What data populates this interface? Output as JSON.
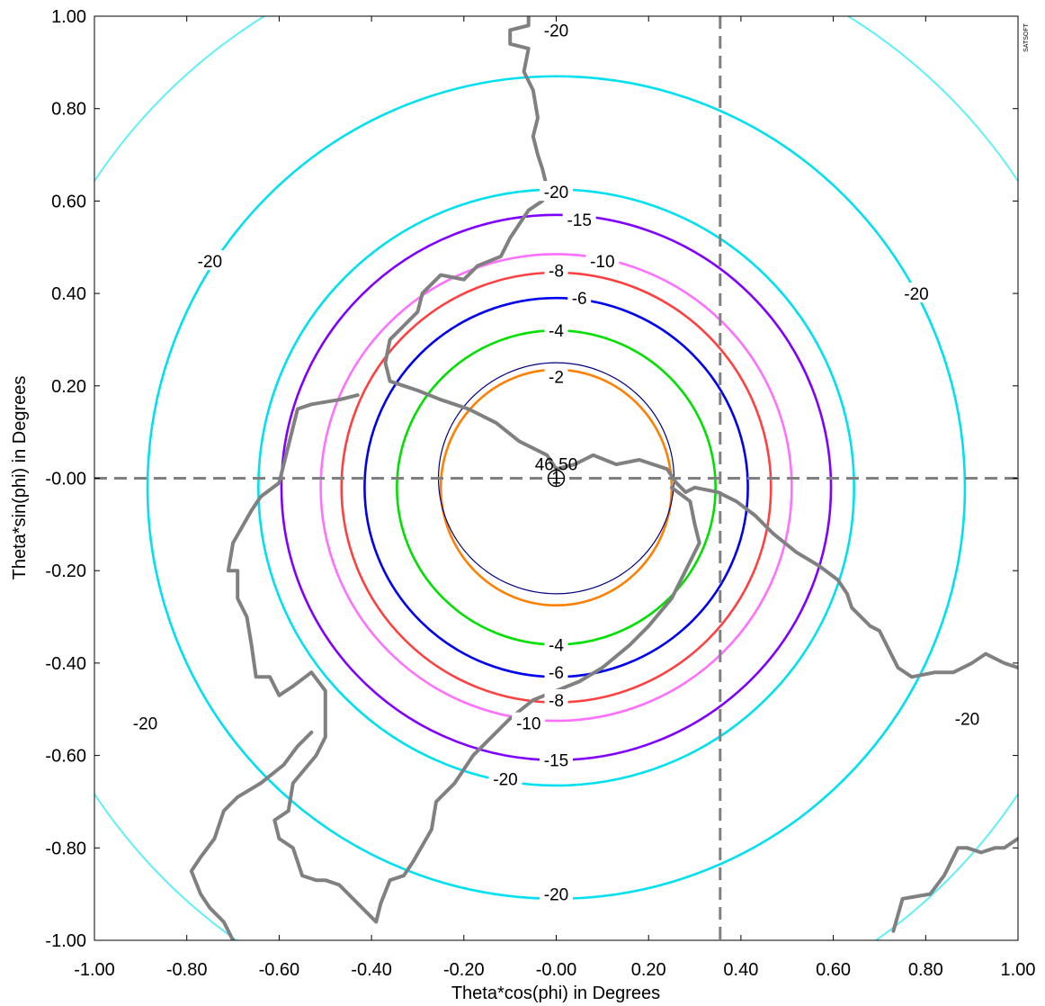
{
  "chart_data": {
    "type": "contour",
    "xlabel": "Theta*cos(phi) in Degrees",
    "ylabel": "Theta*sin(phi) in Degrees",
    "xlim": [
      -1.0,
      1.0
    ],
    "ylim": [
      -1.0,
      1.0
    ],
    "x_ticks": [
      "-1.00",
      "-0.80",
      "-0.60",
      "-0.40",
      "-0.20",
      "-0.00",
      "0.20",
      "0.40",
      "0.60",
      "0.80",
      "1.00"
    ],
    "y_ticks": [
      "1.00",
      "0.80",
      "0.60",
      "0.40",
      "0.20",
      "-0.00",
      "-0.20",
      "-0.40",
      "-0.60",
      "-0.80",
      "-1.00"
    ],
    "corner_tag": "SATSOFT",
    "peak_label": "46.50",
    "peak_marker": "1",
    "reference_lines": {
      "x": 0.355,
      "y": 0.0
    },
    "contours": [
      {
        "level": "-2",
        "color": "#ff8000",
        "cx": 0.0,
        "cy": -0.02,
        "rx": 0.25,
        "ry": 0.255
      },
      {
        "level": "",
        "color": "#000080",
        "cx": 0.0,
        "cy": 0.0,
        "rx": 0.255,
        "ry": 0.25
      },
      {
        "level": "-4",
        "color": "#00e000",
        "cx": 0.0,
        "cy": -0.02,
        "rx": 0.345,
        "ry": 0.34
      },
      {
        "level": "-6",
        "color": "#0000ee",
        "cx": 0.0,
        "cy": -0.02,
        "rx": 0.415,
        "ry": 0.41
      },
      {
        "level": "-8",
        "color": "#ff4040",
        "cx": 0.0,
        "cy": -0.02,
        "rx": 0.465,
        "ry": 0.465
      },
      {
        "level": "-10",
        "color": "#ff70ff",
        "cx": 0.0,
        "cy": -0.02,
        "rx": 0.51,
        "ry": 0.505
      },
      {
        "level": "-15",
        "color": "#8000ff",
        "cx": 0.0,
        "cy": -0.02,
        "rx": 0.595,
        "ry": 0.59
      },
      {
        "level": "-20",
        "color": "#00e0f0",
        "cx": 0.0,
        "cy": -0.02,
        "rx": 0.645,
        "ry": 0.645
      },
      {
        "level": "-20",
        "color": "#00e0f0",
        "cx": 0.0,
        "cy": -0.02,
        "rx": 0.885,
        "ry": 0.89
      },
      {
        "level": "-20",
        "color": "#60f0f8",
        "cx": 0.0,
        "cy": -0.02,
        "rx": 1.2,
        "ry": 1.2
      }
    ],
    "contour_labels": [
      {
        "text": "-20",
        "x": 0.0,
        "y": 0.97
      },
      {
        "text": "-20",
        "x": 0.0,
        "y": 0.62
      },
      {
        "text": "-15",
        "x": 0.05,
        "y": 0.56
      },
      {
        "text": "-10",
        "x": 0.1,
        "y": 0.47
      },
      {
        "text": "-8",
        "x": 0.0,
        "y": 0.45
      },
      {
        "text": "-6",
        "x": 0.05,
        "y": 0.39
      },
      {
        "text": "-4",
        "x": 0.0,
        "y": 0.32
      },
      {
        "text": "-2",
        "x": 0.0,
        "y": 0.22
      },
      {
        "text": "-4",
        "x": 0.0,
        "y": -0.36
      },
      {
        "text": "-6",
        "x": 0.0,
        "y": -0.42
      },
      {
        "text": "-8",
        "x": 0.0,
        "y": -0.48
      },
      {
        "text": "-10",
        "x": -0.06,
        "y": -0.53
      },
      {
        "text": "-15",
        "x": 0.0,
        "y": -0.61
      },
      {
        "text": "-20",
        "x": -0.11,
        "y": -0.65
      },
      {
        "text": "-20",
        "x": 0.0,
        "y": -0.9
      },
      {
        "text": "-20",
        "x": -0.75,
        "y": 0.47
      },
      {
        "text": "-20",
        "x": 0.78,
        "y": 0.4
      },
      {
        "text": "-20",
        "x": -0.89,
        "y": -0.53
      },
      {
        "text": "-20",
        "x": 0.89,
        "y": -0.52
      }
    ],
    "coastlines": [
      [
        [
          -0.06,
          1.0
        ],
        [
          -0.06,
          0.98
        ],
        [
          -0.1,
          0.97
        ],
        [
          -0.1,
          0.94
        ],
        [
          -0.06,
          0.93
        ],
        [
          -0.07,
          0.88
        ],
        [
          -0.05,
          0.84
        ],
        [
          -0.04,
          0.78
        ],
        [
          -0.05,
          0.74
        ],
        [
          -0.04,
          0.7
        ],
        [
          -0.03,
          0.67
        ],
        [
          -0.02,
          0.63
        ],
        [
          -0.03,
          0.6
        ],
        [
          -0.06,
          0.58
        ],
        [
          -0.08,
          0.55
        ],
        [
          -0.1,
          0.52
        ],
        [
          -0.12,
          0.48
        ],
        [
          -0.17,
          0.46
        ],
        [
          -0.2,
          0.43
        ],
        [
          -0.25,
          0.44
        ],
        [
          -0.29,
          0.4
        ],
        [
          -0.3,
          0.36
        ],
        [
          -0.33,
          0.33
        ],
        [
          -0.36,
          0.3
        ],
        [
          -0.37,
          0.25
        ],
        [
          -0.36,
          0.21
        ],
        [
          -0.33,
          0.2
        ],
        [
          -0.3,
          0.19
        ],
        [
          -0.25,
          0.17
        ],
        [
          -0.19,
          0.15
        ],
        [
          -0.13,
          0.12
        ],
        [
          -0.08,
          0.08
        ],
        [
          -0.04,
          0.06
        ],
        [
          -0.02,
          0.05
        ],
        [
          0.0,
          0.02
        ],
        [
          0.04,
          0.03
        ],
        [
          0.08,
          0.05
        ],
        [
          0.13,
          0.03
        ],
        [
          0.18,
          0.04
        ],
        [
          0.24,
          0.02
        ],
        [
          0.26,
          -0.01
        ],
        [
          0.28,
          -0.03
        ],
        [
          0.3,
          -0.02
        ],
        [
          0.35,
          -0.03
        ],
        [
          0.39,
          -0.05
        ],
        [
          0.43,
          -0.08
        ],
        [
          0.47,
          -0.12
        ],
        [
          0.52,
          -0.16
        ],
        [
          0.57,
          -0.19
        ],
        [
          0.61,
          -0.22
        ],
        [
          0.63,
          -0.25
        ],
        [
          0.64,
          -0.28
        ],
        [
          0.66,
          -0.3
        ],
        [
          0.68,
          -0.32
        ],
        [
          0.7,
          -0.33
        ],
        [
          0.72,
          -0.37
        ],
        [
          0.74,
          -0.41
        ],
        [
          0.77,
          -0.43
        ],
        [
          0.82,
          -0.42
        ],
        [
          0.86,
          -0.42
        ],
        [
          0.9,
          -0.4
        ],
        [
          0.93,
          -0.38
        ],
        [
          0.97,
          -0.4
        ],
        [
          1.0,
          -0.41
        ],
        [
          1.02,
          -0.39
        ]
      ],
      [
        [
          0.25,
          -0.02
        ],
        [
          0.29,
          -0.05
        ],
        [
          0.3,
          -0.1
        ],
        [
          0.31,
          -0.14
        ],
        [
          0.28,
          -0.2
        ],
        [
          0.25,
          -0.26
        ],
        [
          0.2,
          -0.32
        ],
        [
          0.16,
          -0.36
        ],
        [
          0.1,
          -0.41
        ],
        [
          0.05,
          -0.44
        ],
        [
          0.0,
          -0.46
        ],
        [
          -0.05,
          -0.48
        ],
        [
          -0.1,
          -0.52
        ],
        [
          -0.14,
          -0.56
        ],
        [
          -0.18,
          -0.6
        ],
        [
          -0.22,
          -0.66
        ],
        [
          -0.26,
          -0.7
        ],
        [
          -0.27,
          -0.76
        ],
        [
          -0.31,
          -0.83
        ],
        [
          -0.33,
          -0.86
        ],
        [
          -0.36,
          -0.87
        ],
        [
          -0.38,
          -0.92
        ],
        [
          -0.39,
          -0.96
        ],
        [
          -0.42,
          -0.93
        ],
        [
          -0.45,
          -0.9
        ],
        [
          -0.47,
          -0.88
        ],
        [
          -0.5,
          -0.87
        ],
        [
          -0.52,
          -0.87
        ],
        [
          -0.55,
          -0.86
        ],
        [
          -0.57,
          -0.8
        ],
        [
          -0.6,
          -0.78
        ],
        [
          -0.61,
          -0.74
        ],
        [
          -0.58,
          -0.72
        ],
        [
          -0.57,
          -0.66
        ],
        [
          -0.52,
          -0.6
        ],
        [
          -0.5,
          -0.56
        ],
        [
          -0.5,
          -0.46
        ],
        [
          -0.53,
          -0.42
        ],
        [
          -0.57,
          -0.45
        ],
        [
          -0.6,
          -0.47
        ],
        [
          -0.62,
          -0.43
        ],
        [
          -0.65,
          -0.43
        ],
        [
          -0.66,
          -0.36
        ],
        [
          -0.67,
          -0.3
        ],
        [
          -0.69,
          -0.26
        ],
        [
          -0.69,
          -0.2
        ],
        [
          -0.71,
          -0.2
        ],
        [
          -0.7,
          -0.14
        ],
        [
          -0.66,
          -0.07
        ],
        [
          -0.64,
          -0.04
        ],
        [
          -0.6,
          -0.01
        ],
        [
          -0.56,
          0.15
        ],
        [
          -0.53,
          0.16
        ],
        [
          -0.47,
          0.17
        ],
        [
          -0.43,
          0.18
        ]
      ],
      [
        [
          -0.7,
          -1.0
        ],
        [
          -0.72,
          -0.96
        ],
        [
          -0.75,
          -0.93
        ],
        [
          -0.77,
          -0.9
        ],
        [
          -0.79,
          -0.85
        ],
        [
          -0.77,
          -0.82
        ],
        [
          -0.74,
          -0.78
        ],
        [
          -0.72,
          -0.72
        ],
        [
          -0.69,
          -0.69
        ],
        [
          -0.64,
          -0.66
        ],
        [
          -0.59,
          -0.62
        ],
        [
          -0.56,
          -0.58
        ],
        [
          -0.53,
          -0.55
        ]
      ],
      [
        [
          0.73,
          -0.98
        ],
        [
          0.75,
          -0.91
        ],
        [
          0.81,
          -0.9
        ],
        [
          0.84,
          -0.86
        ],
        [
          0.85,
          -0.84
        ],
        [
          0.87,
          -0.8
        ],
        [
          0.89,
          -0.8
        ],
        [
          0.92,
          -0.81
        ],
        [
          0.95,
          -0.8
        ],
        [
          0.97,
          -0.8
        ],
        [
          1.0,
          -0.78
        ]
      ]
    ]
  }
}
